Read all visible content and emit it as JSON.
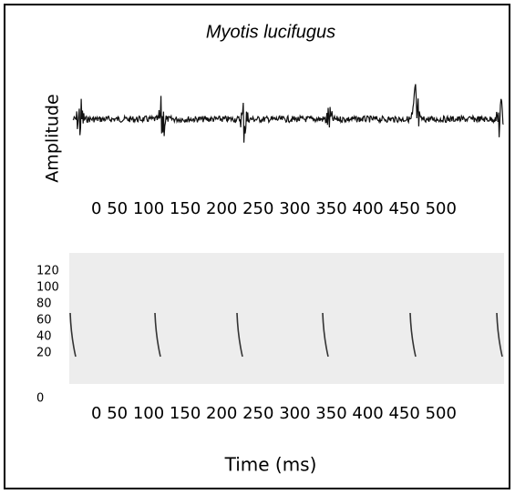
{
  "title": "Myotis lucifugus",
  "waveform_panel": {
    "y_label": "Amplitude",
    "x_tick_labels": [
      0,
      50,
      100,
      150,
      200,
      250,
      300,
      350,
      400,
      450,
      500
    ]
  },
  "spectrogram_panel": {
    "y_tick_labels": [
      120,
      100,
      80,
      60,
      40,
      20,
      0
    ],
    "x_tick_labels": [
      0,
      50,
      100,
      150,
      200,
      250,
      300,
      350,
      400,
      450,
      500
    ]
  },
  "x_label": "Time (ms)"
}
